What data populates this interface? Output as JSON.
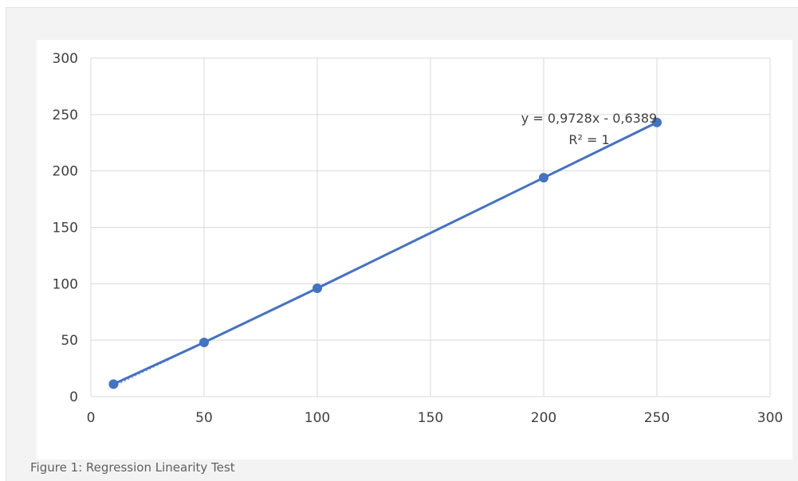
{
  "caption": "Figure 1: Regression Linearity Test",
  "chart_data": {
    "type": "scatter",
    "title": "",
    "xlabel": "",
    "ylabel": "",
    "xlim": [
      0,
      300
    ],
    "ylim": [
      0,
      300
    ],
    "x_ticks": [
      0,
      50,
      100,
      150,
      200,
      250,
      300
    ],
    "y_ticks": [
      0,
      50,
      100,
      150,
      200,
      250,
      300
    ],
    "grid": true,
    "series": [
      {
        "x": [
          10,
          50,
          100,
          200,
          250
        ],
        "y": [
          11,
          48,
          96,
          194,
          243
        ],
        "color": "#4472C4",
        "line": true
      }
    ],
    "trendline": {
      "type": "linear",
      "slope": 0.9728,
      "intercept": -0.6389,
      "equation": "y = 0,9728x - 0,6389",
      "r_squared": "R² = 1"
    },
    "colors": {
      "series": "#4472C4",
      "grid": "#d9d9d9",
      "tick_text": "#404040"
    }
  }
}
